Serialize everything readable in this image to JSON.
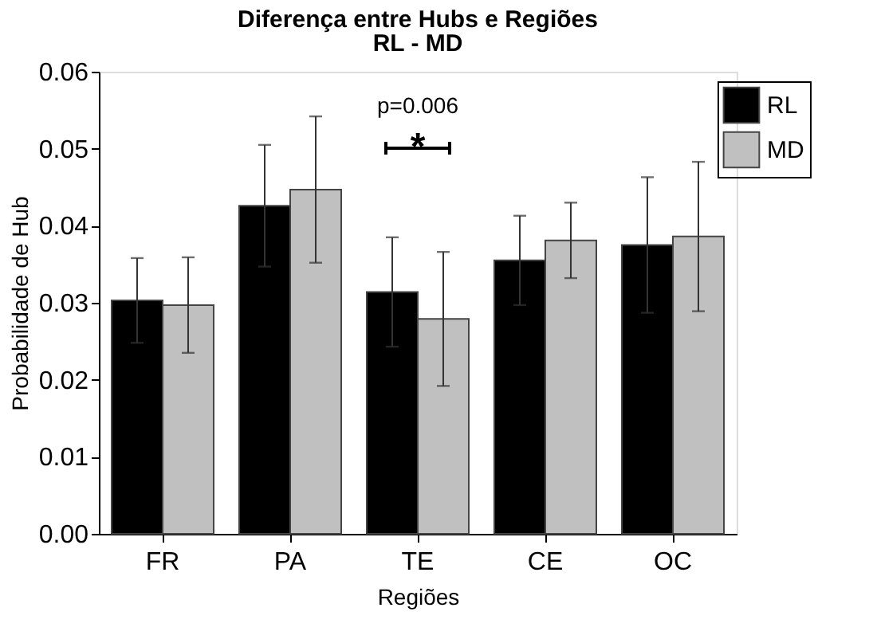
{
  "chart_data": {
    "type": "bar",
    "title": "Diferença entre Hubs e Regiões",
    "subtitle": "RL - MD",
    "xlabel": "Regiões",
    "ylabel": "Probabilidade de Hub",
    "categories": [
      "FR",
      "PA",
      "TE",
      "CE",
      "OC"
    ],
    "series": [
      {
        "name": "RL",
        "color": "#000000",
        "values": [
          0.0303,
          0.0426,
          0.0314,
          0.0355,
          0.0375
        ],
        "errors": [
          0.0055,
          0.0079,
          0.0071,
          0.0058,
          0.0088
        ]
      },
      {
        "name": "MD",
        "color": "#c0c0c0",
        "values": [
          0.0297,
          0.0447,
          0.0279,
          0.0381,
          0.0386
        ],
        "errors": [
          0.0062,
          0.0095,
          0.0087,
          0.0049,
          0.0097
        ]
      }
    ],
    "ylim": [
      0,
      0.06
    ],
    "yticks": [
      {
        "value": 0,
        "label": "0.00"
      },
      {
        "value": 0.01,
        "label": "0.01"
      },
      {
        "value": 0.02,
        "label": "0.02"
      },
      {
        "value": 0.03,
        "label": "0.03"
      },
      {
        "value": 0.04,
        "label": "0.04"
      },
      {
        "value": 0.05,
        "label": "0.05"
      },
      {
        "value": 0.06,
        "label": "0.06"
      }
    ],
    "annotations": [
      "p=0.006",
      "*"
    ],
    "grid": false,
    "legend": "top right"
  }
}
